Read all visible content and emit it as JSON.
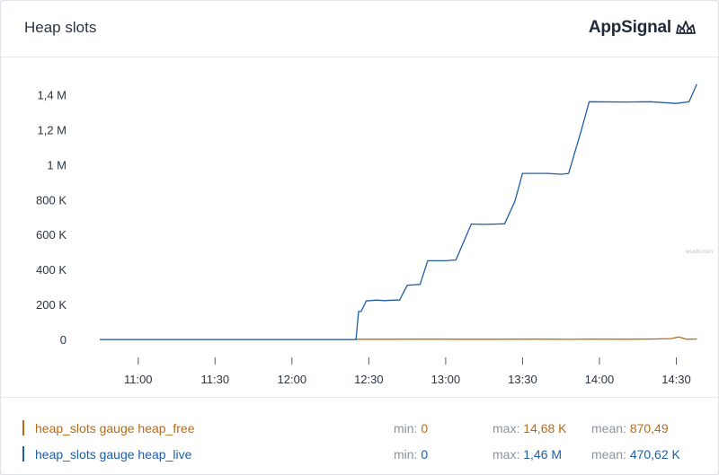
{
  "header": {
    "title": "Heap slots",
    "brand": "AppSignal"
  },
  "watermark": "wsxdn.com",
  "colors": {
    "heap_free": "#b86a12",
    "heap_live": "#1e5ea8",
    "grid_text": "#2b3440",
    "axis_tick": "#555f6b"
  },
  "chart_data": {
    "type": "line",
    "title": "Heap slots",
    "xlabel": "",
    "ylabel": "",
    "ylim": [
      -10000,
      1500000
    ],
    "xlim": [
      "10:45",
      "14:40"
    ],
    "y_ticks": [
      0,
      200000,
      400000,
      600000,
      800000,
      1000000,
      1200000,
      1400000
    ],
    "y_tick_labels": [
      "0",
      "200 K",
      "400 K",
      "600 K",
      "800 K",
      "1 M",
      "1,2 M",
      "1,4 M"
    ],
    "x_ticks": [
      "11:00",
      "11:30",
      "12:00",
      "12:30",
      "13:00",
      "13:30",
      "14:00",
      "14:30"
    ],
    "grid": false,
    "legend": "bottom",
    "series": [
      {
        "name": "heap_slots gauge heap_free",
        "color": "#b86a12",
        "points": [
          [
            "10:45",
            0
          ],
          [
            "12:25",
            0
          ],
          [
            "12:26",
            1500
          ],
          [
            "12:40",
            1500
          ],
          [
            "12:55",
            1800
          ],
          [
            "13:05",
            1200
          ],
          [
            "13:20",
            1500
          ],
          [
            "13:35",
            1800
          ],
          [
            "13:50",
            1000
          ],
          [
            "13:55",
            2400
          ],
          [
            "14:10",
            1500
          ],
          [
            "14:20",
            2500
          ],
          [
            "14:28",
            5000
          ],
          [
            "14:31",
            14680
          ],
          [
            "14:34",
            1500
          ],
          [
            "14:38",
            2500
          ]
        ]
      },
      {
        "name": "heap_slots gauge heap_live",
        "color": "#1e5ea8",
        "points": [
          [
            "10:45",
            0
          ],
          [
            "12:25",
            0
          ],
          [
            "12:26",
            160000
          ],
          [
            "12:27",
            160000
          ],
          [
            "12:29",
            220000
          ],
          [
            "12:33",
            225000
          ],
          [
            "12:36",
            222000
          ],
          [
            "12:40",
            225000
          ],
          [
            "12:42",
            225000
          ],
          [
            "12:45",
            310000
          ],
          [
            "12:48",
            313000
          ],
          [
            "12:50",
            315000
          ],
          [
            "12:53",
            450000
          ],
          [
            "13:00",
            450000
          ],
          [
            "13:04",
            455000
          ],
          [
            "13:10",
            660000
          ],
          [
            "13:15",
            658000
          ],
          [
            "13:20",
            660000
          ],
          [
            "13:23",
            662000
          ],
          [
            "13:27",
            790000
          ],
          [
            "13:30",
            950000
          ],
          [
            "13:40",
            950000
          ],
          [
            "13:45",
            945000
          ],
          [
            "13:48",
            950000
          ],
          [
            "13:53",
            1200000
          ],
          [
            "13:56",
            1360000
          ],
          [
            "14:10",
            1358000
          ],
          [
            "14:20",
            1360000
          ],
          [
            "14:30",
            1350000
          ],
          [
            "14:35",
            1360000
          ],
          [
            "14:38",
            1460000
          ]
        ]
      }
    ]
  },
  "legend": {
    "items": [
      {
        "name": "heap_slots gauge heap_free",
        "min_label": "min:",
        "min": "0",
        "max_label": "max:",
        "max": "14,68 K",
        "mean_label": "mean:",
        "mean": "870,49"
      },
      {
        "name": "heap_slots gauge heap_live",
        "min_label": "min:",
        "min": "0",
        "max_label": "max:",
        "max": "1,46 M",
        "mean_label": "mean:",
        "mean": "470,62 K"
      }
    ]
  }
}
